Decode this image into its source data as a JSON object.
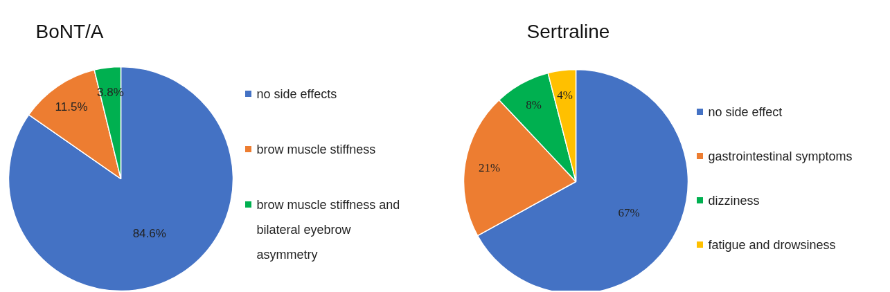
{
  "chart_data": [
    {
      "type": "pie",
      "title": "BoNT/A",
      "categories": [
        "no side effects",
        "brow muscle stiffness",
        "brow muscle stiffness and bilateral eyebrow asymmetry"
      ],
      "values": [
        84.6,
        11.5,
        3.8
      ],
      "colors": [
        "#4472c4",
        "#ed7d31",
        "#00b050"
      ],
      "data_labels": true,
      "value_labels": [
        "84.6%",
        "11.5%",
        "3.8%"
      ],
      "legend": "right"
    },
    {
      "type": "pie",
      "title": "Sertraline",
      "categories": [
        "no side effect",
        "gastrointestinal symptoms",
        "dizziness",
        "fatigue and drowsiness"
      ],
      "values": [
        67,
        21,
        8,
        4
      ],
      "colors": [
        "#4472c4",
        "#ed7d31",
        "#00b050",
        "#ffc000"
      ],
      "data_labels": true,
      "value_labels": [
        "67%",
        "21%",
        "8%",
        "4%"
      ],
      "legend": "right"
    }
  ]
}
